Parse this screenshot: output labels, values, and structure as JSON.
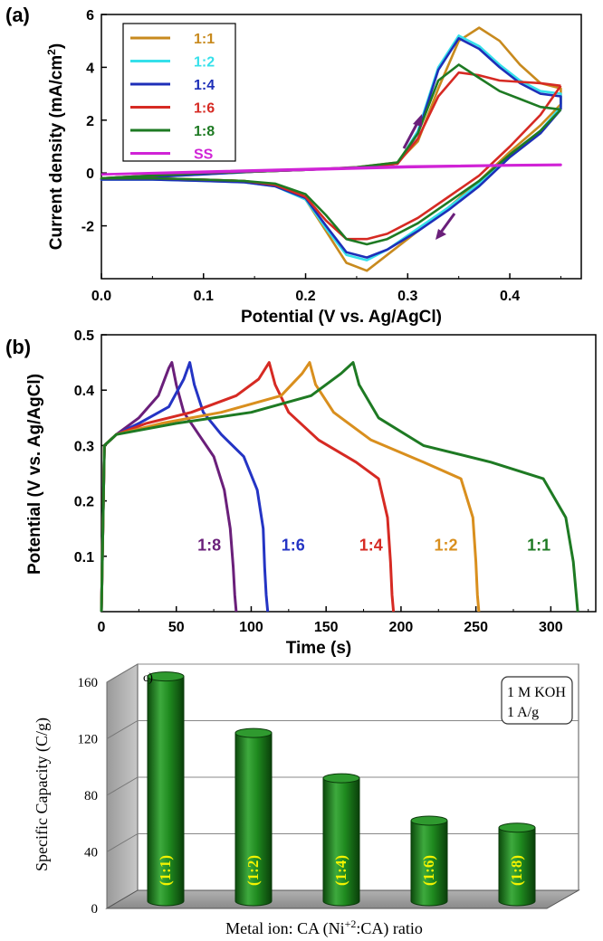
{
  "chart_data": [
    {
      "panel_label": "(a)",
      "type": "line",
      "xlabel": "Potential (V vs. Ag/AgCl)",
      "ylabel": "Current density (mA/cm",
      "ylabel_sup": "2",
      "ylabel_close": ")",
      "xlim": [
        0.0,
        0.47
      ],
      "ylim": [
        -4.0,
        6.0
      ],
      "xticks": [
        "0.0",
        "0.1",
        "0.2",
        "0.3",
        "0.4"
      ],
      "yticks": [
        "-2",
        "0",
        "2",
        "4",
        "6"
      ],
      "legend_position": "top-left",
      "legend": [
        "1:1",
        "1:2",
        "1:4",
        "1:6",
        "1:8",
        "SS"
      ],
      "series": [
        {
          "name": "1:1",
          "color": "#c88a1e",
          "x": [
            0.45,
            0.43,
            0.4,
            0.37,
            0.34,
            0.31,
            0.28,
            0.26,
            0.24,
            0.22,
            0.2,
            0.17,
            0.14,
            0.1,
            0.05,
            0.0,
            0.05,
            0.1,
            0.15,
            0.2,
            0.25,
            0.29,
            0.31,
            0.33,
            0.35,
            0.37,
            0.39,
            0.41,
            0.43,
            0.45,
            0.45
          ],
          "y": [
            2.6,
            1.8,
            0.8,
            -0.3,
            -1.3,
            -2.2,
            -3.1,
            -3.7,
            -3.4,
            -2.2,
            -1.0,
            -0.45,
            -0.3,
            -0.25,
            -0.2,
            -0.2,
            -0.1,
            0.0,
            0.05,
            0.12,
            0.22,
            0.4,
            1.2,
            3.2,
            5.0,
            5.5,
            5.0,
            4.1,
            3.4,
            3.2,
            2.6
          ]
        },
        {
          "name": "1:2",
          "color": "#35e0ea",
          "x": [
            0.45,
            0.43,
            0.4,
            0.37,
            0.34,
            0.31,
            0.28,
            0.26,
            0.24,
            0.22,
            0.2,
            0.17,
            0.14,
            0.1,
            0.05,
            0.0,
            0.05,
            0.1,
            0.15,
            0.2,
            0.25,
            0.29,
            0.31,
            0.33,
            0.35,
            0.37,
            0.39,
            0.41,
            0.43,
            0.45,
            0.45
          ],
          "y": [
            2.5,
            1.6,
            0.7,
            -0.4,
            -1.3,
            -2.1,
            -2.9,
            -3.3,
            -3.1,
            -2.1,
            -1.0,
            -0.5,
            -0.35,
            -0.3,
            -0.25,
            -0.25,
            -0.15,
            -0.05,
            0.05,
            0.12,
            0.2,
            0.35,
            1.6,
            4.0,
            5.2,
            4.8,
            4.1,
            3.5,
            3.1,
            3.0,
            2.5
          ]
        },
        {
          "name": "1:4",
          "color": "#1e2fb8",
          "x": [
            0.45,
            0.43,
            0.4,
            0.37,
            0.34,
            0.31,
            0.28,
            0.26,
            0.24,
            0.22,
            0.2,
            0.17,
            0.14,
            0.1,
            0.05,
            0.0,
            0.05,
            0.1,
            0.15,
            0.2,
            0.25,
            0.29,
            0.31,
            0.33,
            0.35,
            0.37,
            0.39,
            0.41,
            0.43,
            0.45,
            0.45
          ],
          "y": [
            2.4,
            1.5,
            0.6,
            -0.5,
            -1.4,
            -2.2,
            -2.9,
            -3.2,
            -3.0,
            -2.0,
            -0.95,
            -0.5,
            -0.35,
            -0.3,
            -0.25,
            -0.25,
            -0.15,
            -0.05,
            0.05,
            0.12,
            0.2,
            0.35,
            1.5,
            3.9,
            5.1,
            4.7,
            4.0,
            3.4,
            3.0,
            2.9,
            2.4
          ]
        },
        {
          "name": "1:6",
          "color": "#d62a23",
          "x": [
            0.45,
            0.43,
            0.4,
            0.37,
            0.34,
            0.31,
            0.28,
            0.26,
            0.24,
            0.22,
            0.2,
            0.17,
            0.14,
            0.1,
            0.05,
            0.0,
            0.05,
            0.1,
            0.15,
            0.2,
            0.25,
            0.29,
            0.31,
            0.33,
            0.35,
            0.37,
            0.39,
            0.41,
            0.43,
            0.45,
            0.45
          ],
          "y": [
            3.3,
            2.2,
            1.0,
            -0.1,
            -0.9,
            -1.7,
            -2.3,
            -2.5,
            -2.5,
            -1.8,
            -0.9,
            -0.45,
            -0.3,
            -0.25,
            -0.2,
            -0.2,
            -0.1,
            0.0,
            0.05,
            0.12,
            0.2,
            0.35,
            1.3,
            2.9,
            3.8,
            3.7,
            3.5,
            3.45,
            3.4,
            3.3,
            3.3
          ]
        },
        {
          "name": "1:8",
          "color": "#1e7a23",
          "x": [
            0.45,
            0.43,
            0.4,
            0.37,
            0.34,
            0.31,
            0.28,
            0.26,
            0.24,
            0.22,
            0.2,
            0.17,
            0.14,
            0.1,
            0.05,
            0.0,
            0.05,
            0.1,
            0.15,
            0.2,
            0.25,
            0.29,
            0.31,
            0.33,
            0.35,
            0.37,
            0.39,
            0.41,
            0.43,
            0.45,
            0.45
          ],
          "y": [
            2.4,
            1.6,
            0.7,
            -0.3,
            -1.1,
            -1.9,
            -2.5,
            -2.7,
            -2.5,
            -1.6,
            -0.8,
            -0.4,
            -0.3,
            -0.25,
            -0.2,
            -0.2,
            -0.1,
            0.0,
            0.05,
            0.12,
            0.22,
            0.4,
            1.5,
            3.5,
            4.1,
            3.6,
            3.1,
            2.8,
            2.5,
            2.4,
            2.4
          ]
        },
        {
          "name": "SS",
          "color": "#d023d6",
          "x": [
            0.0,
            0.1,
            0.2,
            0.3,
            0.4,
            0.45,
            0.45,
            0.4,
            0.3,
            0.2,
            0.1,
            0.0
          ],
          "y": [
            -0.05,
            0.05,
            0.15,
            0.25,
            0.3,
            0.32,
            0.3,
            0.28,
            0.22,
            0.12,
            0.02,
            -0.05
          ]
        }
      ],
      "annotations": [
        "anodic-sweep-arrow",
        "cathodic-sweep-arrow"
      ]
    },
    {
      "panel_label": "(b)",
      "type": "line",
      "xlabel": "Time (s)",
      "ylabel": "Potential (V vs. Ag/AgCl)",
      "xlim": [
        0,
        330
      ],
      "ylim": [
        0.0,
        0.5
      ],
      "xticks": [
        "0",
        "50",
        "100",
        "150",
        "200",
        "250",
        "300"
      ],
      "yticks": [
        "0.1",
        "0.2",
        "0.3",
        "0.4",
        "0.5"
      ],
      "series": [
        {
          "name": "1:8",
          "color": "#6a1f7a",
          "x": [
            0,
            2,
            10,
            25,
            38,
            45,
            47,
            50,
            55,
            65,
            75,
            82,
            86,
            88,
            89,
            90
          ],
          "y": [
            0.0,
            0.3,
            0.32,
            0.35,
            0.39,
            0.44,
            0.45,
            0.41,
            0.36,
            0.32,
            0.28,
            0.22,
            0.15,
            0.08,
            0.03,
            0.0
          ]
        },
        {
          "name": "1:6",
          "color": "#2434c4",
          "x": [
            0,
            2,
            10,
            25,
            45,
            55,
            59,
            62,
            68,
            80,
            95,
            104,
            108,
            109,
            110,
            111
          ],
          "y": [
            0.0,
            0.3,
            0.32,
            0.34,
            0.37,
            0.42,
            0.45,
            0.41,
            0.36,
            0.32,
            0.28,
            0.22,
            0.15,
            0.08,
            0.03,
            0.0
          ]
        },
        {
          "name": "1:4",
          "color": "#d62a23",
          "x": [
            0,
            2,
            10,
            30,
            60,
            90,
            105,
            112,
            116,
            125,
            145,
            170,
            185,
            191,
            193,
            194,
            195
          ],
          "y": [
            0.0,
            0.3,
            0.32,
            0.34,
            0.36,
            0.39,
            0.42,
            0.45,
            0.41,
            0.36,
            0.31,
            0.27,
            0.24,
            0.17,
            0.09,
            0.03,
            0.0
          ]
        },
        {
          "name": "1:2",
          "color": "#d98f1e",
          "x": [
            0,
            2,
            10,
            40,
            80,
            120,
            134,
            139,
            143,
            155,
            180,
            215,
            240,
            248,
            250,
            251,
            252
          ],
          "y": [
            0.0,
            0.3,
            0.32,
            0.34,
            0.36,
            0.39,
            0.43,
            0.45,
            0.41,
            0.36,
            0.31,
            0.27,
            0.24,
            0.17,
            0.09,
            0.03,
            0.0
          ]
        },
        {
          "name": "1:1",
          "color": "#1e7a23",
          "x": [
            0,
            2,
            10,
            50,
            100,
            140,
            160,
            168,
            172,
            185,
            215,
            260,
            295,
            310,
            315,
            317,
            318
          ],
          "y": [
            0.0,
            0.3,
            0.32,
            0.34,
            0.36,
            0.39,
            0.43,
            0.45,
            0.41,
            0.35,
            0.3,
            0.27,
            0.24,
            0.17,
            0.09,
            0.03,
            0.0
          ]
        }
      ],
      "labels": [
        {
          "text": "1:8",
          "color": "#6a1f7a",
          "x": 72,
          "y": 0.11
        },
        {
          "text": "1:6",
          "color": "#2434c4",
          "x": 128,
          "y": 0.11
        },
        {
          "text": "1:4",
          "color": "#d62a23",
          "x": 180,
          "y": 0.11
        },
        {
          "text": "1:2",
          "color": "#d98f1e",
          "x": 230,
          "y": 0.11
        },
        {
          "text": "1:1",
          "color": "#1e7a23",
          "x": 292,
          "y": 0.11
        }
      ]
    },
    {
      "panel_label": "c)",
      "type": "bar",
      "ylabel": "Specific Capacity (C/g)",
      "xlabel": "Metal ion: CA  (Ni",
      "xlabel_sup": "+2",
      "xlabel_close": ":CA) ratio",
      "ylim": [
        0,
        160
      ],
      "yticks": [
        "0",
        "40",
        "80",
        "120",
        "160"
      ],
      "categories": [
        "(1:1)",
        "(1:2)",
        "(1:4)",
        "(1:6)",
        "(1:8)"
      ],
      "values": [
        159,
        119,
        87,
        57,
        52
      ],
      "bar_color": "#1f8a1f",
      "label_color": "#f2f200",
      "grid": true,
      "info_box": [
        "1 M KOH",
        "1 A/g"
      ],
      "legend_position": "top-right"
    }
  ]
}
